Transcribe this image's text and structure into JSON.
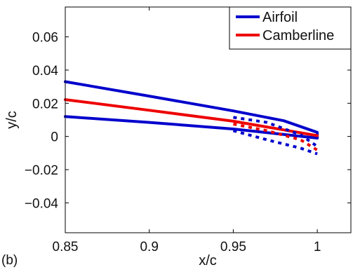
{
  "panel_label": "(b)",
  "chart_data": {
    "type": "line",
    "xlabel": "x/c",
    "ylabel": "y/c",
    "xlim": [
      0.85,
      1.02
    ],
    "ylim": [
      -0.058,
      0.078
    ],
    "x_ticks": [
      0.85,
      0.9,
      0.95,
      1
    ],
    "x_tick_labels": [
      "0.85",
      "0.9",
      "0.95",
      "1"
    ],
    "y_ticks": [
      -0.04,
      -0.02,
      0,
      0.02,
      0.04,
      0.06
    ],
    "y_tick_labels": [
      "−0.04",
      "−0.02",
      "0",
      "0.02",
      "0.04",
      "0.06"
    ],
    "grid": false,
    "legend_position": "top-right",
    "series": [
      {
        "name": "Airfoil",
        "color": "#0000cc",
        "style": "solid",
        "x": [
          0.85,
          0.9,
          0.95,
          0.98,
          1.0,
          1.0,
          0.98,
          0.95,
          0.9,
          0.85
        ],
        "y": [
          0.033,
          0.0243,
          0.0154,
          0.0095,
          0.0025,
          -0.001,
          0.0012,
          0.0045,
          0.0085,
          0.012
        ]
      },
      {
        "name": "Camberline",
        "color": "#ee0000",
        "style": "solid",
        "x": [
          0.85,
          0.9,
          0.95,
          1.0
        ],
        "y": [
          0.0222,
          0.0158,
          0.0092,
          0.0005
        ]
      },
      {
        "name": "",
        "color": "#0000cc",
        "style": "dashed",
        "x": [
          0.95,
          0.97,
          0.99,
          1.0
        ],
        "y": [
          0.0115,
          0.0085,
          0.001,
          -0.006
        ]
      },
      {
        "name": "",
        "color": "#0000cc",
        "style": "dashed",
        "x": [
          0.95,
          0.97,
          0.99,
          1.0
        ],
        "y": [
          0.0035,
          -0.002,
          -0.007,
          -0.0105
        ]
      },
      {
        "name": "",
        "color": "#ee0000",
        "style": "dashed",
        "x": [
          0.95,
          0.97,
          0.99,
          1.0
        ],
        "y": [
          0.0075,
          0.0035,
          -0.002,
          -0.0082
        ]
      }
    ]
  }
}
